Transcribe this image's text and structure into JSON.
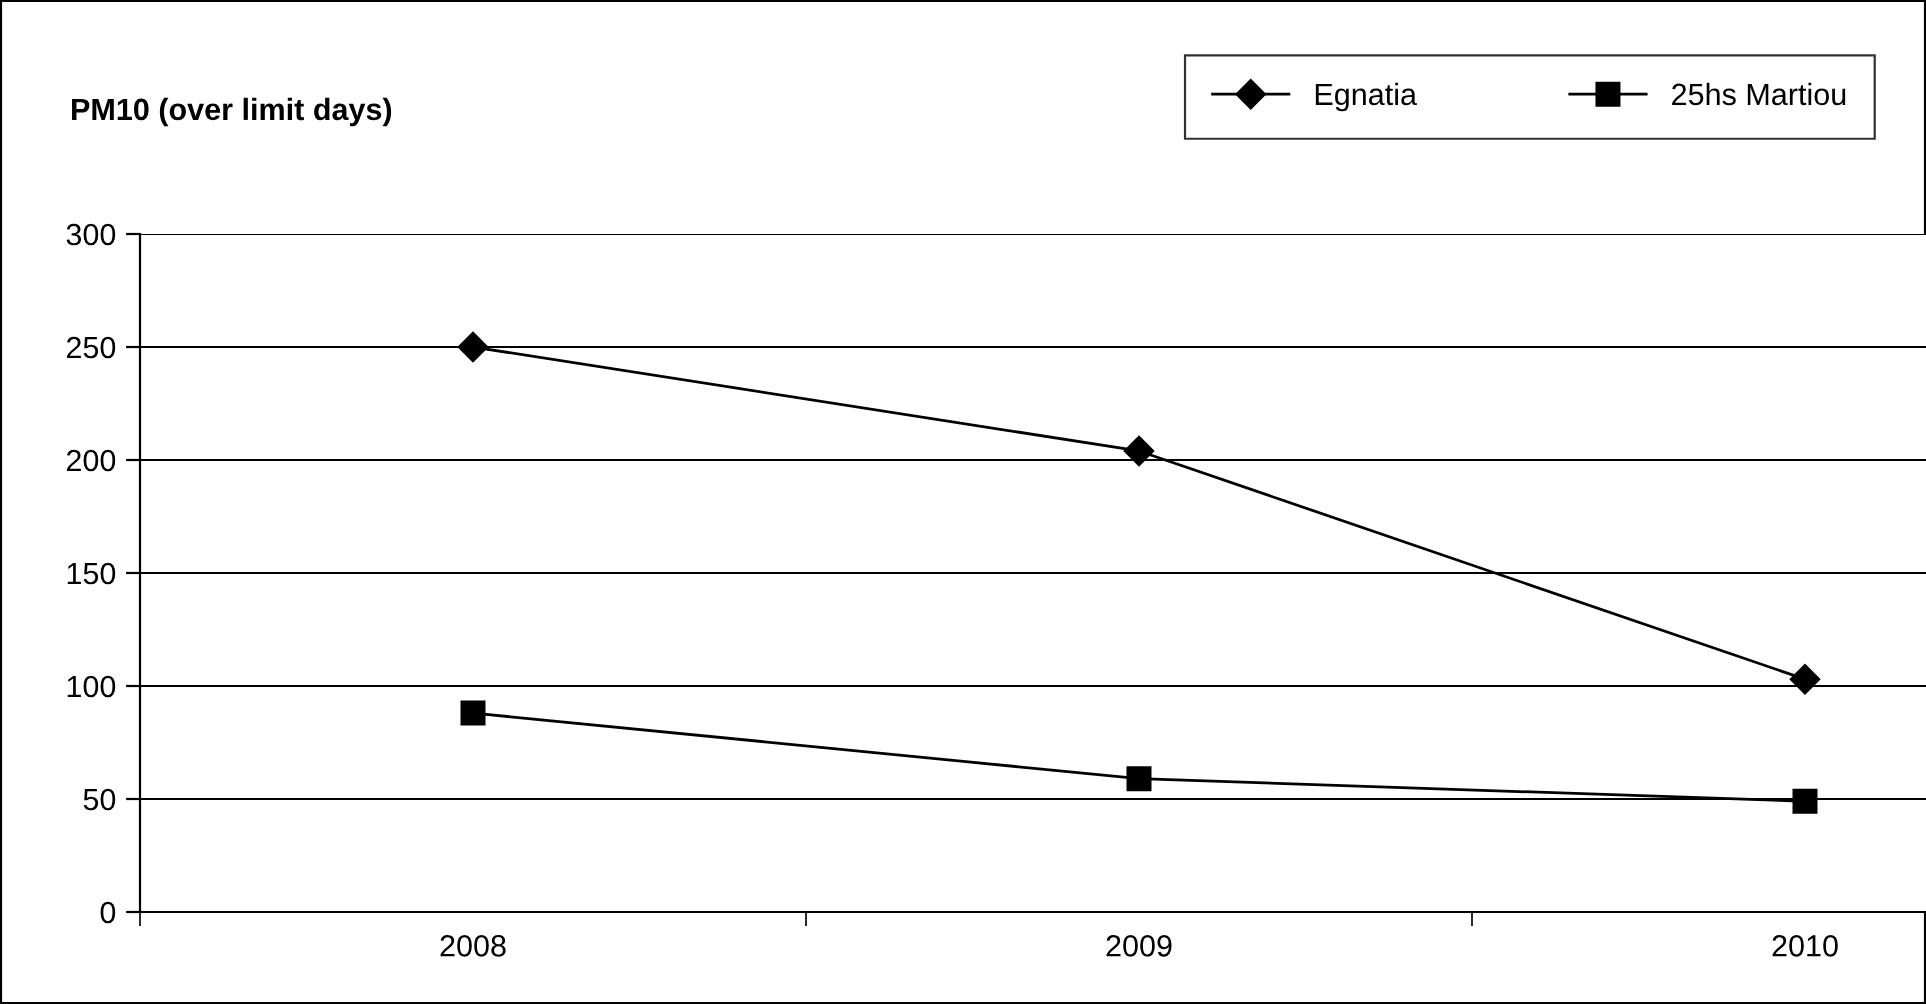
{
  "chart_data": {
    "type": "line",
    "title": "PM10 (over limit days)",
    "categories": [
      "2008",
      "2009",
      "2010"
    ],
    "series": [
      {
        "name": "Egnatia",
        "color": "#000000",
        "marker": "diamond",
        "values": [
          250,
          204,
          103
        ]
      },
      {
        "name": "25hs Martiou",
        "color": "#000000",
        "marker": "square",
        "values": [
          88,
          59,
          49
        ]
      }
    ],
    "ylim": [
      0,
      300
    ],
    "yticks": [
      0,
      50,
      100,
      150,
      200,
      250,
      300
    ],
    "grid": "y",
    "legend": "top right",
    "line_style": "solid"
  }
}
